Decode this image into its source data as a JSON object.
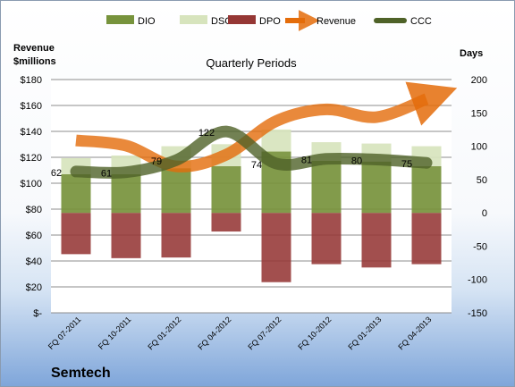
{
  "chart_data": {
    "type": "bar",
    "title": "Quarterly Periods",
    "company": "Semtech",
    "ylabel_left": "Revenue\n$millions",
    "ylabel_right": "Days",
    "categories": [
      "FQ 07-2011",
      "FQ 10-2011",
      "FQ 01-2012",
      "FQ 04-2012",
      "FQ 07-2012",
      "FQ 10-2012",
      "FQ 01-2013",
      "FQ 04-2013"
    ],
    "left_axis": {
      "range": [
        0,
        180
      ],
      "ticks": [
        0,
        20,
        40,
        60,
        80,
        100,
        120,
        140,
        160,
        180
      ],
      "tick_labels": [
        "$-",
        "$20",
        "$40",
        "$60",
        "$80",
        "$100",
        "$120",
        "$140",
        "$160",
        "$180"
      ]
    },
    "right_axis": {
      "range": [
        -150,
        200
      ],
      "ticks": [
        -150,
        -100,
        -50,
        0,
        50,
        100,
        150,
        200
      ],
      "tick_labels": [
        "-150",
        "-100",
        "-50",
        "0",
        "50",
        "100",
        "150",
        "200"
      ]
    },
    "legend": {
      "position": "top",
      "items": [
        {
          "name": "DIO",
          "color": "#77933c",
          "kind": "bar"
        },
        {
          "name": "DSO",
          "color": "#d7e4bd",
          "kind": "bar"
        },
        {
          "name": "DPO",
          "color": "#953735",
          "kind": "bar"
        },
        {
          "name": "Revenue",
          "color": "#e46c0a",
          "kind": "arrow"
        },
        {
          "name": "CCC",
          "color": "#4f6228",
          "kind": "line"
        }
      ]
    },
    "series": [
      {
        "name": "DIO",
        "axis": "days",
        "values": [
          58,
          58,
          67,
          70,
          92,
          78,
          77,
          70
        ]
      },
      {
        "name": "DSO",
        "axis": "days",
        "values": [
          24,
          28,
          33,
          33,
          33,
          28,
          27,
          30
        ]
      },
      {
        "name": "DPO",
        "axis": "days",
        "values": [
          -62,
          -68,
          -67,
          -28,
          -104,
          -77,
          -82,
          -77
        ]
      },
      {
        "name": "Revenue",
        "axis": "revenue",
        "values": [
          133,
          129,
          113,
          122,
          148,
          157,
          151,
          165
        ]
      },
      {
        "name": "CCC",
        "axis": "days",
        "values": [
          62,
          61,
          79,
          122,
          74,
          81,
          80,
          75
        ]
      }
    ],
    "ccc_labels": [
      "62",
      "61",
      "79",
      "122",
      "74",
      "81",
      "80",
      "75"
    ],
    "colors": {
      "grid": "#8c8c8c",
      "plot_bg": "#ffffff",
      "text": "#000000"
    }
  }
}
